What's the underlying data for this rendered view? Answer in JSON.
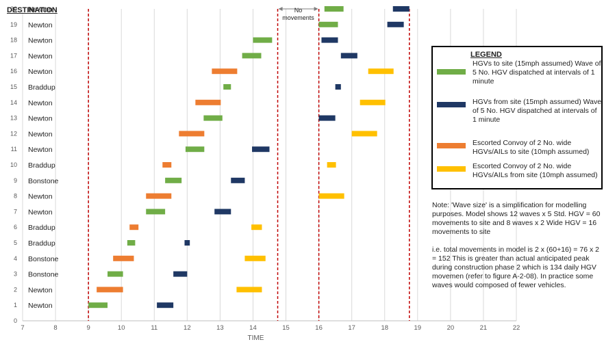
{
  "chart_data": {
    "type": "gantt",
    "column_header": "DESTINATION",
    "xlabel": "TIME",
    "xlim": [
      7,
      22
    ],
    "x_ticks": [
      7,
      8,
      9,
      10,
      11,
      12,
      13,
      14,
      15,
      16,
      17,
      18,
      19,
      20,
      21,
      22
    ],
    "ylim": [
      0,
      20
    ],
    "y_ticks": [
      0,
      1,
      2,
      3,
      4,
      5,
      6,
      7,
      8,
      9,
      10,
      11,
      12,
      13,
      14,
      15,
      16,
      17,
      18,
      19,
      20
    ],
    "rows": [
      {
        "y": 1,
        "destination": "Newton"
      },
      {
        "y": 2,
        "destination": "Newton"
      },
      {
        "y": 3,
        "destination": "Bonstone"
      },
      {
        "y": 4,
        "destination": "Bonstone"
      },
      {
        "y": 5,
        "destination": "Braddup"
      },
      {
        "y": 6,
        "destination": "Braddup"
      },
      {
        "y": 7,
        "destination": "Newton"
      },
      {
        "y": 8,
        "destination": "Newton"
      },
      {
        "y": 9,
        "destination": "Bonstone"
      },
      {
        "y": 10,
        "destination": "Braddup"
      },
      {
        "y": 11,
        "destination": "Newton"
      },
      {
        "y": 12,
        "destination": "Newton"
      },
      {
        "y": 13,
        "destination": "Newton"
      },
      {
        "y": 14,
        "destination": "Newton"
      },
      {
        "y": 15,
        "destination": "Braddup"
      },
      {
        "y": 16,
        "destination": "Newton"
      },
      {
        "y": 17,
        "destination": "Newton"
      },
      {
        "y": 18,
        "destination": "Newton"
      },
      {
        "y": 19,
        "destination": "Newton"
      },
      {
        "y": 20,
        "destination": "Newton"
      }
    ],
    "vertical_lines": [
      9,
      14.75,
      16,
      18.75
    ],
    "annotation": {
      "text": "No movements",
      "x_start": 14.75,
      "x_end": 16,
      "y": 20
    },
    "series": [
      {
        "key": "hgv_to",
        "color": "#70ad47",
        "bars": [
          {
            "y": 1,
            "start": 9,
            "end": 9.58
          },
          {
            "y": 3,
            "start": 9.58,
            "end": 10.05
          },
          {
            "y": 5,
            "start": 10.18,
            "end": 10.42
          },
          {
            "y": 7,
            "start": 10.75,
            "end": 11.33
          },
          {
            "y": 9,
            "start": 11.33,
            "end": 11.83
          },
          {
            "y": 11,
            "start": 11.95,
            "end": 12.52
          },
          {
            "y": 13,
            "start": 12.5,
            "end": 13.07
          },
          {
            "y": 15,
            "start": 13.1,
            "end": 13.33
          },
          {
            "y": 17,
            "start": 13.67,
            "end": 14.25
          },
          {
            "y": 18,
            "start": 14,
            "end": 14.58
          },
          {
            "y": 19,
            "start": 16,
            "end": 16.58
          },
          {
            "y": 20,
            "start": 16.17,
            "end": 16.75
          }
        ]
      },
      {
        "key": "hgv_from",
        "color": "#1f3864",
        "bars": [
          {
            "y": 1,
            "start": 11.08,
            "end": 11.58
          },
          {
            "y": 3,
            "start": 11.58,
            "end": 12
          },
          {
            "y": 5,
            "start": 11.92,
            "end": 12.08
          },
          {
            "y": 7,
            "start": 12.83,
            "end": 13.33
          },
          {
            "y": 9,
            "start": 13.33,
            "end": 13.75
          },
          {
            "y": 11,
            "start": 13.97,
            "end": 14.5
          },
          {
            "y": 13,
            "start": 16,
            "end": 16.5
          },
          {
            "y": 15,
            "start": 16.5,
            "end": 16.67
          },
          {
            "y": 17,
            "start": 16.67,
            "end": 17.17
          },
          {
            "y": 18,
            "start": 16.08,
            "end": 16.58
          },
          {
            "y": 19,
            "start": 18.08,
            "end": 18.58
          },
          {
            "y": 20,
            "start": 18.25,
            "end": 18.75
          }
        ]
      },
      {
        "key": "convoy_to",
        "color": "#ed7d31",
        "bars": [
          {
            "y": 2,
            "start": 9.25,
            "end": 10.05
          },
          {
            "y": 4,
            "start": 9.75,
            "end": 10.38
          },
          {
            "y": 6,
            "start": 10.25,
            "end": 10.52
          },
          {
            "y": 8,
            "start": 10.75,
            "end": 11.52
          },
          {
            "y": 10,
            "start": 11.25,
            "end": 11.52
          },
          {
            "y": 12,
            "start": 11.75,
            "end": 12.52
          },
          {
            "y": 14,
            "start": 12.25,
            "end": 13.02
          },
          {
            "y": 16,
            "start": 12.75,
            "end": 13.52
          }
        ]
      },
      {
        "key": "convoy_from",
        "color": "#ffc000",
        "bars": [
          {
            "y": 2,
            "start": 13.5,
            "end": 14.27
          },
          {
            "y": 4,
            "start": 13.75,
            "end": 14.38
          },
          {
            "y": 6,
            "start": 13.95,
            "end": 14.27
          },
          {
            "y": 8,
            "start": 16,
            "end": 16.77
          },
          {
            "y": 10,
            "start": 16.25,
            "end": 16.52
          },
          {
            "y": 12,
            "start": 17,
            "end": 17.77
          },
          {
            "y": 14,
            "start": 17.25,
            "end": 18.02
          },
          {
            "y": 16,
            "start": 17.5,
            "end": 18.27
          }
        ]
      }
    ]
  },
  "legend": {
    "title": "LEGEND",
    "items": [
      {
        "color": "#70ad47",
        "text": "HGVs to site (15mph assumed) Wave of 5 No. HGV dispatched at intervals of 1 minute"
      },
      {
        "color": "#1f3864",
        "text": "HGVs from site (15mph assumed) Wave of 5 No. HGV dispatched at intervals of 1 minute"
      },
      {
        "color": "#ed7d31",
        "text": "Escorted Convoy of 2 No. wide HGVs/AILs to site (10mph assumed)"
      },
      {
        "color": "#ffc000",
        "text": "Escorted Convoy of 2 No. wide HGVs/AILs from site (10mph assumed)"
      }
    ]
  },
  "note": {
    "para1": "Note: 'Wave size' is a simplification for modelling purposes. Model shows 12 waves x 5 Std. HGV = 60 movements to site and 8 waves x 2 Wide HGV = 16 movements to site",
    "para2": "i.e. total movements in model is 2 x (60+16) = 76 x 2 = 152 This is greater than actual anticipated peak during construction phase 2 which is 134 daily HGV movemen (refer to figure A-2-08). In practice some waves would composed of fewer vehicles."
  }
}
